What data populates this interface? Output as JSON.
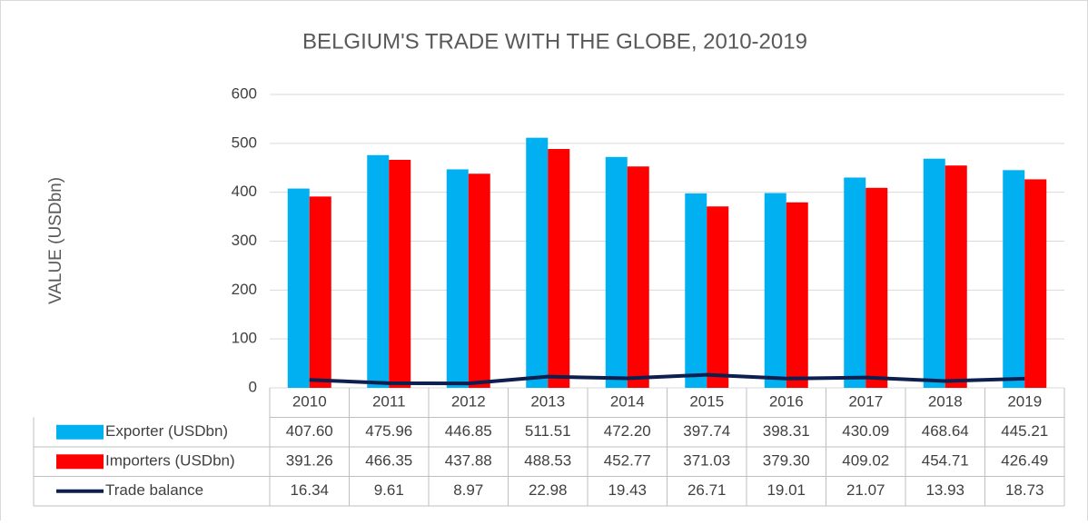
{
  "chart_data": {
    "type": "bar",
    "title": "BELGIUM'S TRADE WITH THE GLOBE, 2010-2019",
    "y_label": "VALUE (USDbn)",
    "categories": [
      "2010",
      "2011",
      "2012",
      "2013",
      "2014",
      "2015",
      "2016",
      "2017",
      "2018",
      "2019"
    ],
    "series": [
      {
        "name": "Exporter (USDbn)",
        "type": "bar",
        "color": "#00b0f0",
        "values": [
          407.6,
          475.96,
          446.85,
          511.51,
          472.2,
          397.74,
          398.31,
          430.09,
          468.64,
          445.21
        ],
        "value_labels": [
          "407.60",
          "475.96",
          "446.85",
          "511.51",
          "472.20",
          "397.74",
          "398.31",
          "430.09",
          "468.64",
          "445.21"
        ]
      },
      {
        "name": "Importers (USDbn)",
        "type": "bar",
        "color": "#ff0000",
        "values": [
          391.26,
          466.35,
          437.88,
          488.53,
          452.77,
          371.03,
          379.3,
          409.02,
          454.71,
          426.49
        ],
        "value_labels": [
          "391.26",
          "466.35",
          "437.88",
          "488.53",
          "452.77",
          "371.03",
          "379.30",
          "409.02",
          "454.71",
          "426.49"
        ]
      },
      {
        "name": "Trade balance",
        "type": "line",
        "color": "#0d1f4f",
        "values": [
          16.34,
          9.61,
          8.97,
          22.98,
          19.43,
          26.71,
          19.01,
          21.07,
          13.93,
          18.73
        ]
      }
    ],
    "ylim": [
      0,
      600
    ],
    "yticks": [
      0,
      100,
      200,
      300,
      400,
      500,
      600
    ],
    "grid": true
  }
}
